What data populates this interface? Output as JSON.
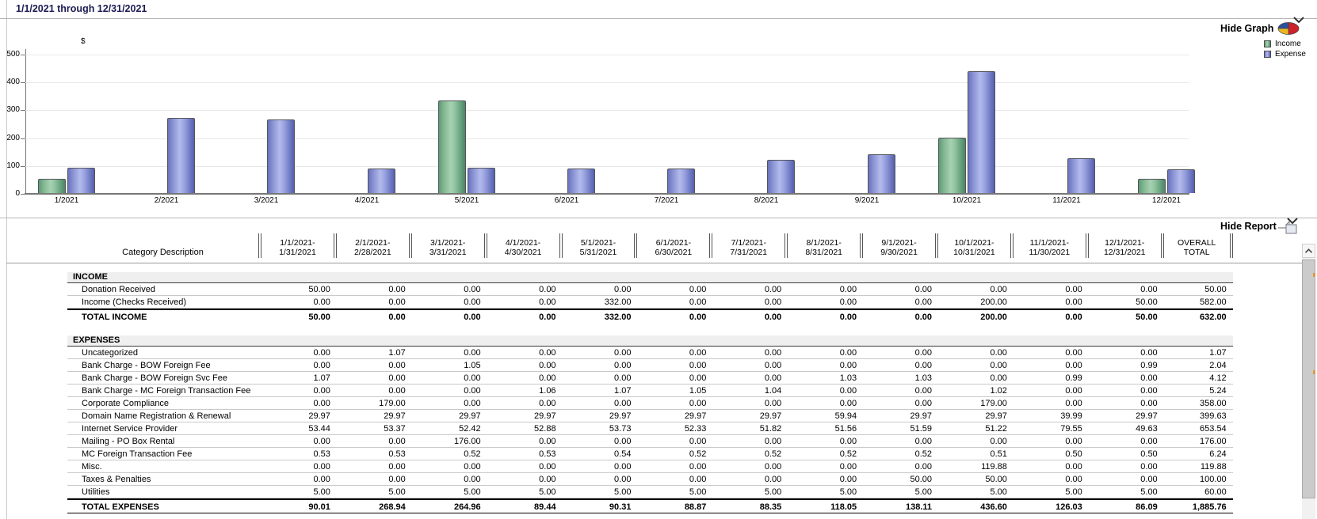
{
  "title": "1/1/2021 through 12/31/2021",
  "graph": {
    "toggle_label": "Hide Graph",
    "legend": [
      {
        "label": "Income",
        "color": "#7fb690"
      },
      {
        "label": "Expense",
        "color": "#8891d2"
      }
    ]
  },
  "chart_data": {
    "type": "bar",
    "title": "",
    "xlabel": "",
    "ylabel": "$",
    "ylim": [
      0,
      500
    ],
    "yticks": [
      0,
      100,
      200,
      300,
      400,
      500
    ],
    "grid": true,
    "legend_position": "top-right",
    "categories": [
      "1/2021",
      "2/2021",
      "3/2021",
      "4/2021",
      "5/2021",
      "6/2021",
      "7/2021",
      "8/2021",
      "9/2021",
      "10/2021",
      "11/2021",
      "12/2021"
    ],
    "series": [
      {
        "name": "Income",
        "color": "#7fb690",
        "values": [
          50,
          0,
          0,
          0,
          332,
          0,
          0,
          0,
          0,
          200,
          0,
          50
        ]
      },
      {
        "name": "Expense",
        "color": "#8891d2",
        "values": [
          90.01,
          268.94,
          264.96,
          89.44,
          90.31,
          88.87,
          88.35,
          118.05,
          138.11,
          436.6,
          126.03,
          86.09
        ]
      }
    ]
  },
  "report": {
    "toggle_label": "Hide Report",
    "header": {
      "category": "Category Description",
      "months": [
        [
          "1/1/2021-",
          "1/31/2021"
        ],
        [
          "2/1/2021-",
          "2/28/2021"
        ],
        [
          "3/1/2021-",
          "3/31/2021"
        ],
        [
          "4/1/2021-",
          "4/30/2021"
        ],
        [
          "5/1/2021-",
          "5/31/2021"
        ],
        [
          "6/1/2021-",
          "6/30/2021"
        ],
        [
          "7/1/2021-",
          "7/31/2021"
        ],
        [
          "8/1/2021-",
          "8/31/2021"
        ],
        [
          "9/1/2021-",
          "9/30/2021"
        ],
        [
          "10/1/2021-",
          "10/31/2021"
        ],
        [
          "11/1/2021-",
          "11/30/2021"
        ],
        [
          "12/1/2021-",
          "12/31/2021"
        ]
      ],
      "overall": [
        "OVERALL",
        "TOTAL"
      ]
    },
    "sections": [
      {
        "name": "INCOME",
        "rows": [
          {
            "label": "Donation Received",
            "values": [
              "50.00",
              "0.00",
              "0.00",
              "0.00",
              "0.00",
              "0.00",
              "0.00",
              "0.00",
              "0.00",
              "0.00",
              "0.00",
              "0.00",
              "50.00"
            ]
          },
          {
            "label": "Income (Checks Received)",
            "values": [
              "0.00",
              "0.00",
              "0.00",
              "0.00",
              "332.00",
              "0.00",
              "0.00",
              "0.00",
              "0.00",
              "200.00",
              "0.00",
              "50.00",
              "582.00"
            ]
          }
        ],
        "total": {
          "label": "TOTAL INCOME",
          "values": [
            "50.00",
            "0.00",
            "0.00",
            "0.00",
            "332.00",
            "0.00",
            "0.00",
            "0.00",
            "0.00",
            "200.00",
            "0.00",
            "50.00",
            "632.00"
          ]
        }
      },
      {
        "name": "EXPENSES",
        "rows": [
          {
            "label": "Uncategorized",
            "values": [
              "0.00",
              "1.07",
              "0.00",
              "0.00",
              "0.00",
              "0.00",
              "0.00",
              "0.00",
              "0.00",
              "0.00",
              "0.00",
              "0.00",
              "1.07"
            ]
          },
          {
            "label": "Bank Charge - BOW Foreign Fee",
            "values": [
              "0.00",
              "0.00",
              "1.05",
              "0.00",
              "0.00",
              "0.00",
              "0.00",
              "0.00",
              "0.00",
              "0.00",
              "0.00",
              "0.99",
              "2.04"
            ]
          },
          {
            "label": "Bank Charge - BOW Foreign Svc Fee",
            "values": [
              "1.07",
              "0.00",
              "0.00",
              "0.00",
              "0.00",
              "0.00",
              "0.00",
              "1.03",
              "1.03",
              "0.00",
              "0.99",
              "0.00",
              "4.12"
            ]
          },
          {
            "label": "Bank Charge - MC Foreign Transaction Fee",
            "values": [
              "0.00",
              "0.00",
              "0.00",
              "1.06",
              "1.07",
              "1.05",
              "1.04",
              "0.00",
              "0.00",
              "1.02",
              "0.00",
              "0.00",
              "5.24"
            ]
          },
          {
            "label": "Corporate Compliance",
            "values": [
              "0.00",
              "179.00",
              "0.00",
              "0.00",
              "0.00",
              "0.00",
              "0.00",
              "0.00",
              "0.00",
              "179.00",
              "0.00",
              "0.00",
              "358.00"
            ]
          },
          {
            "label": "Domain Name Registration & Renewal",
            "values": [
              "29.97",
              "29.97",
              "29.97",
              "29.97",
              "29.97",
              "29.97",
              "29.97",
              "59.94",
              "29.97",
              "29.97",
              "39.99",
              "29.97",
              "399.63"
            ]
          },
          {
            "label": "Internet Service Provider",
            "values": [
              "53.44",
              "53.37",
              "52.42",
              "52.88",
              "53.73",
              "52.33",
              "51.82",
              "51.56",
              "51.59",
              "51.22",
              "79.55",
              "49.63",
              "653.54"
            ]
          },
          {
            "label": "Mailing - PO Box Rental",
            "values": [
              "0.00",
              "0.00",
              "176.00",
              "0.00",
              "0.00",
              "0.00",
              "0.00",
              "0.00",
              "0.00",
              "0.00",
              "0.00",
              "0.00",
              "176.00"
            ]
          },
          {
            "label": "MC Foreign Transaction Fee",
            "values": [
              "0.53",
              "0.53",
              "0.52",
              "0.53",
              "0.54",
              "0.52",
              "0.52",
              "0.52",
              "0.52",
              "0.51",
              "0.50",
              "0.50",
              "6.24"
            ]
          },
          {
            "label": "Misc.",
            "values": [
              "0.00",
              "0.00",
              "0.00",
              "0.00",
              "0.00",
              "0.00",
              "0.00",
              "0.00",
              "0.00",
              "119.88",
              "0.00",
              "0.00",
              "119.88"
            ]
          },
          {
            "label": "Taxes & Penalties",
            "values": [
              "0.00",
              "0.00",
              "0.00",
              "0.00",
              "0.00",
              "0.00",
              "0.00",
              "0.00",
              "50.00",
              "50.00",
              "0.00",
              "0.00",
              "100.00"
            ]
          },
          {
            "label": "Utilities",
            "values": [
              "5.00",
              "5.00",
              "5.00",
              "5.00",
              "5.00",
              "5.00",
              "5.00",
              "5.00",
              "5.00",
              "5.00",
              "5.00",
              "5.00",
              "60.00"
            ]
          }
        ],
        "total": {
          "label": "TOTAL EXPENSES",
          "values": [
            "90.01",
            "268.94",
            "264.96",
            "89.44",
            "90.31",
            "88.87",
            "88.35",
            "118.05",
            "138.11",
            "436.60",
            "126.03",
            "86.09",
            "1,885.76"
          ]
        }
      }
    ]
  }
}
